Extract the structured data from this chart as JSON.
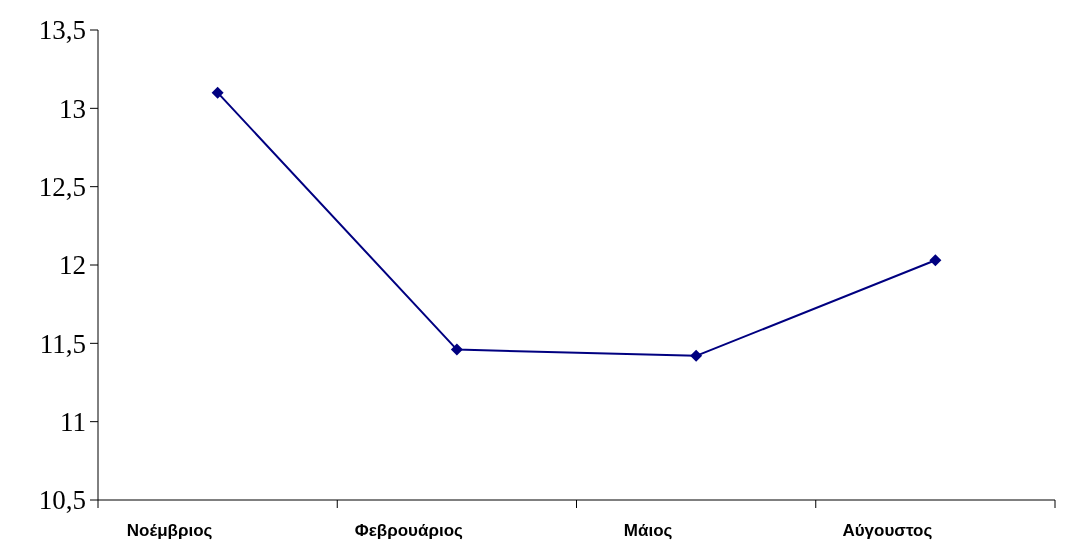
{
  "chart_data": {
    "type": "line",
    "categories": [
      "Νοέμβριος",
      "Φεβρουάριος",
      "Μάιος",
      "Αύγουστος"
    ],
    "series": [
      {
        "color": "#000080",
        "values": [
          13.1,
          11.46,
          11.42,
          12.03
        ]
      }
    ],
    "ylim": [
      10.5,
      13.5
    ],
    "yticks": [
      {
        "value": 10.5,
        "label": "10,5"
      },
      11,
      {
        "value": 11.5,
        "label": "11,5"
      },
      12,
      {
        "value": 12.5,
        "label": "12,5"
      },
      13,
      {
        "value": 13.5,
        "label": "13,5"
      }
    ],
    "grid": false,
    "marker": "diamond",
    "line_style": "solid"
  }
}
